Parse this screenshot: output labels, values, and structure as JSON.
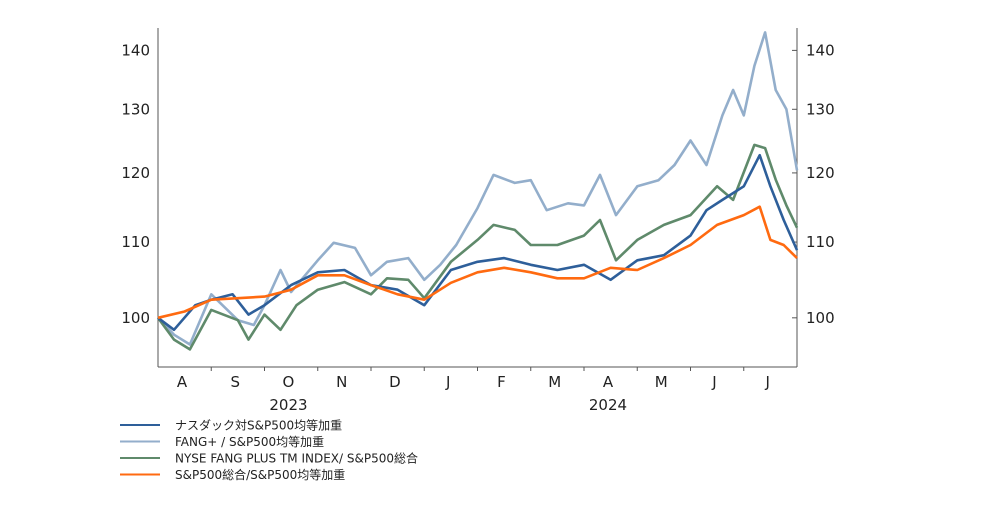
{
  "chart_data": {
    "type": "line",
    "title": "",
    "xlabel": "",
    "ylabel": "",
    "yscale": "log",
    "ylim": [
      94,
      144
    ],
    "xlim_months_since_aug_2023": [
      0,
      12
    ],
    "grid": false,
    "legend_position": "bottom-left",
    "yticks": [
      100,
      110,
      120,
      130,
      140
    ],
    "ytick_labels": [
      "100",
      "110",
      "120",
      "130",
      "140"
    ],
    "month_labels": [
      "A",
      "S",
      "O",
      "N",
      "D",
      "J",
      "F",
      "M",
      "A",
      "M",
      "J",
      "J"
    ],
    "year_labels": [
      "2023",
      "2024"
    ],
    "series": [
      {
        "name": "ナスダック対S&P500均等加重",
        "color": "#2e5f9a",
        "x": [
          0,
          0.3,
          0.7,
          1,
          1.4,
          1.7,
          2,
          2.5,
          3,
          3.5,
          4,
          4.5,
          5,
          5.5,
          6,
          6.5,
          7,
          7.5,
          8,
          8.5,
          9,
          9.5,
          10,
          10.3,
          10.6,
          11,
          11.3,
          11.5,
          11.75,
          12
        ],
        "values": [
          100,
          98.5,
          101.6,
          102.3,
          103,
          100.4,
          101.6,
          104.2,
          105.9,
          106.2,
          104.2,
          103.6,
          101.6,
          106.2,
          107.3,
          107.8,
          106.9,
          106.2,
          106.9,
          104.9,
          107.5,
          108.2,
          110.9,
          114.5,
          116,
          118,
          122.7,
          118,
          113.1,
          108.9
        ]
      },
      {
        "name": "FANG+ / S&P500均等加重",
        "color": "#93aecb",
        "x": [
          0,
          0.3,
          0.6,
          1,
          1.5,
          1.8,
          2,
          2.3,
          2.5,
          3,
          3.3,
          3.7,
          4,
          4.3,
          4.7,
          5,
          5.3,
          5.6,
          6,
          6.3,
          6.7,
          7,
          7.3,
          7.7,
          8,
          8.3,
          8.6,
          9,
          9.4,
          9.7,
          10,
          10.3,
          10.6,
          10.8,
          11,
          11.2,
          11.4,
          11.6,
          11.8,
          12
        ],
        "values": [
          100,
          97.9,
          96.7,
          103,
          99.7,
          99.1,
          101.6,
          106.2,
          103.3,
          107.5,
          109.9,
          109.2,
          105.5,
          107.3,
          107.8,
          104.9,
          106.9,
          109.6,
          114.8,
          119.7,
          118.5,
          118.9,
          114.5,
          115.5,
          115.2,
          119.7,
          113.8,
          118,
          118.9,
          121.2,
          125,
          121.2,
          129,
          133.2,
          129,
          137.3,
          143.2,
          133.2,
          130,
          120.4
        ]
      },
      {
        "name": "NYSE FANG PLUS TM INDEX/ S&P500総合",
        "color": "#5f8a6b",
        "x": [
          0,
          0.3,
          0.6,
          1,
          1.5,
          1.7,
          2,
          2.3,
          2.6,
          3,
          3.5,
          4,
          4.3,
          4.7,
          5,
          5.5,
          6,
          6.3,
          6.7,
          7,
          7.5,
          8,
          8.3,
          8.6,
          9,
          9.5,
          10,
          10.5,
          10.8,
          11.2,
          11.4,
          11.6,
          11.8,
          12
        ],
        "values": [
          100,
          97.3,
          96.1,
          101,
          99.7,
          97.3,
          100.4,
          98.5,
          101.6,
          103.6,
          104.6,
          103,
          105.1,
          104.9,
          102.5,
          107.3,
          110.3,
          112.4,
          111.7,
          109.6,
          109.6,
          110.9,
          113.1,
          107.5,
          110.3,
          112.4,
          113.8,
          118,
          116,
          124.3,
          123.8,
          119,
          115.2,
          112
        ]
      },
      {
        "name": "S&P500総合/S&P500均等加重",
        "color": "#ff6a10",
        "x": [
          0,
          0.5,
          1,
          1.5,
          2,
          2.5,
          3,
          3.5,
          4,
          4.5,
          5,
          5.5,
          6,
          6.5,
          7,
          7.5,
          8,
          8.5,
          9,
          9.5,
          10,
          10.5,
          11,
          11.3,
          11.5,
          11.75,
          12
        ],
        "values": [
          100,
          100.8,
          102.3,
          102.5,
          102.7,
          103.6,
          105.5,
          105.5,
          104.2,
          103,
          102.3,
          104.5,
          105.9,
          106.5,
          105.9,
          105.1,
          105.1,
          106.5,
          106.2,
          107.8,
          109.6,
          112.4,
          113.8,
          115,
          110.3,
          109.6,
          107.8
        ]
      }
    ]
  }
}
